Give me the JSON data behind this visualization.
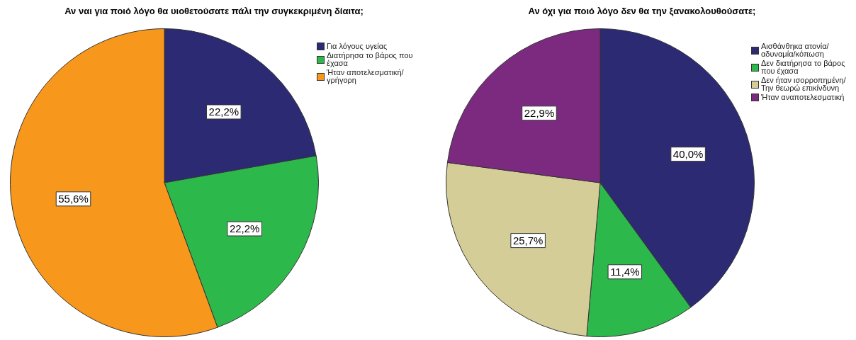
{
  "chart_data": [
    {
      "type": "pie",
      "title": "Αν ναι για ποιό λόγο θα υιοθετούσατε πάλι την συγκεκριμένη δίαιτα;",
      "categories": [
        "Για λόγους υγείας",
        "Διατήρησα το βάρος που έχασα",
        "Ήταν αποτελεσματική/γρήγορη"
      ],
      "values": [
        22.2,
        22.2,
        55.6
      ],
      "colors": [
        "#2b2a73",
        "#2db84b",
        "#f7981d"
      ],
      "value_labels": [
        "22,2%",
        "22,2%",
        "55,6%"
      ],
      "legend": "top right"
    },
    {
      "type": "pie",
      "title": "Αν όχι για ποιό λόγο δεν θα την ξανακολουθούσατε;",
      "categories": [
        "Αισθάνθηκα ατονία/αδυναμία/κόπωση",
        "Δεν διατήρησα το βάρος που έχασα",
        "Δεν ήταν ισορροπημένη/Την θεωρώ επικίνδυνη",
        "Ήταν αναποτελεσματική"
      ],
      "values": [
        40.0,
        11.4,
        25.7,
        22.9
      ],
      "colors": [
        "#2b2a73",
        "#2db84b",
        "#d4cd98",
        "#7b2a7f"
      ],
      "value_labels": [
        "40,0%",
        "11,4%",
        "25,7%",
        "22,9%"
      ],
      "legend": "top right"
    }
  ]
}
